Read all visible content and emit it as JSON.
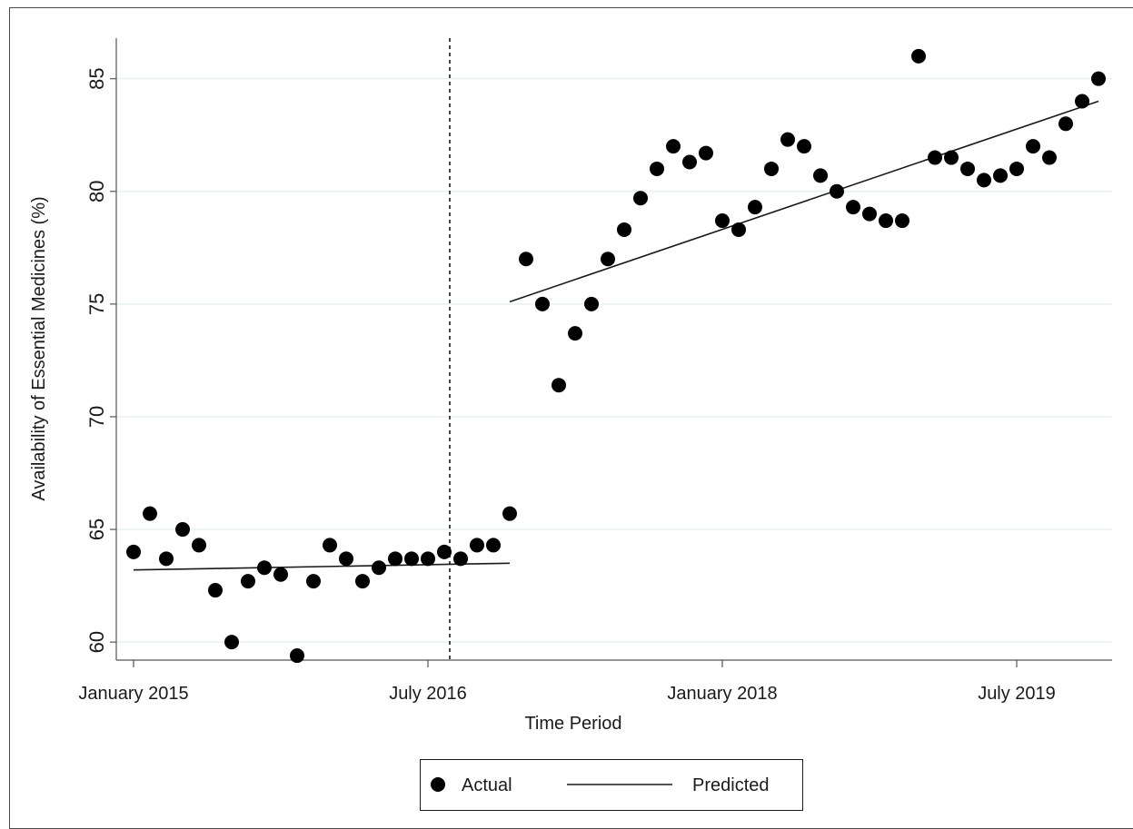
{
  "chart_data": {
    "type": "scatter",
    "title": "",
    "xlabel": "Time Period",
    "ylabel": "Availability of Essential Medicines (%)",
    "x_ticks": [
      "January 2015",
      "July 2016",
      "January 2018",
      "July 2019"
    ],
    "y_ticks": [
      "60",
      "65",
      "70",
      "75",
      "80",
      "85"
    ],
    "ylim": [
      59.2,
      86.8
    ],
    "xlim": [
      "2014-12",
      "2019-12"
    ],
    "grid": true,
    "legend_position": "bottom",
    "intervention": "2016-08",
    "series": [
      {
        "name": "Actual",
        "kind": "points",
        "points": [
          [
            "2015-01",
            64.0
          ],
          [
            "2015-02",
            65.7
          ],
          [
            "2015-03",
            63.7
          ],
          [
            "2015-04",
            65.0
          ],
          [
            "2015-05",
            64.3
          ],
          [
            "2015-06",
            62.3
          ],
          [
            "2015-07",
            60.0
          ],
          [
            "2015-08",
            62.7
          ],
          [
            "2015-09",
            63.3
          ],
          [
            "2015-10",
            63.0
          ],
          [
            "2015-11",
            59.4
          ],
          [
            "2015-12",
            62.7
          ],
          [
            "2016-01",
            64.3
          ],
          [
            "2016-02",
            63.7
          ],
          [
            "2016-03",
            62.7
          ],
          [
            "2016-04",
            63.3
          ],
          [
            "2016-05",
            63.7
          ],
          [
            "2016-06",
            63.7
          ],
          [
            "2016-07",
            63.7
          ],
          [
            "2016-08",
            64.0
          ],
          [
            "2016-09",
            63.7
          ],
          [
            "2016-10",
            64.3
          ],
          [
            "2016-11",
            64.3
          ],
          [
            "2016-12",
            65.7
          ],
          [
            "2017-01",
            77.0
          ],
          [
            "2017-02",
            75.0
          ],
          [
            "2017-03",
            71.4
          ],
          [
            "2017-04",
            73.7
          ],
          [
            "2017-05",
            75.0
          ],
          [
            "2017-06",
            77.0
          ],
          [
            "2017-07",
            78.3
          ],
          [
            "2017-08",
            79.7
          ],
          [
            "2017-09",
            81.0
          ],
          [
            "2017-10",
            82.0
          ],
          [
            "2017-11",
            81.3
          ],
          [
            "2017-12",
            81.7
          ],
          [
            "2018-01",
            78.7
          ],
          [
            "2018-02",
            78.3
          ],
          [
            "2018-03",
            79.3
          ],
          [
            "2018-04",
            81.0
          ],
          [
            "2018-05",
            82.3
          ],
          [
            "2018-06",
            82.0
          ],
          [
            "2018-07",
            80.7
          ],
          [
            "2018-08",
            80.0
          ],
          [
            "2018-09",
            79.3
          ],
          [
            "2018-10",
            79.0
          ],
          [
            "2018-11",
            78.7
          ],
          [
            "2018-12",
            78.7
          ],
          [
            "2019-01",
            86.0
          ],
          [
            "2019-02",
            81.5
          ],
          [
            "2019-03",
            81.5
          ],
          [
            "2019-04",
            81.0
          ],
          [
            "2019-05",
            80.5
          ],
          [
            "2019-06",
            80.7
          ],
          [
            "2019-07",
            81.0
          ],
          [
            "2019-08",
            82.0
          ],
          [
            "2019-09",
            81.5
          ],
          [
            "2019-10",
            83.0
          ],
          [
            "2019-11",
            84.0
          ],
          [
            "2019-12",
            85.0
          ]
        ]
      },
      {
        "name": "Predicted",
        "kind": "line",
        "segments": [
          [
            [
              "2015-01",
              63.2
            ],
            [
              "2016-12",
              63.5
            ]
          ],
          [
            [
              "2016-12",
              75.1
            ],
            [
              "2019-12",
              84.0
            ]
          ]
        ]
      }
    ]
  },
  "colors": {
    "marker": "#000000",
    "line": "#1a1a1a",
    "grid": "#e8f1f1",
    "axis": "#555555"
  }
}
